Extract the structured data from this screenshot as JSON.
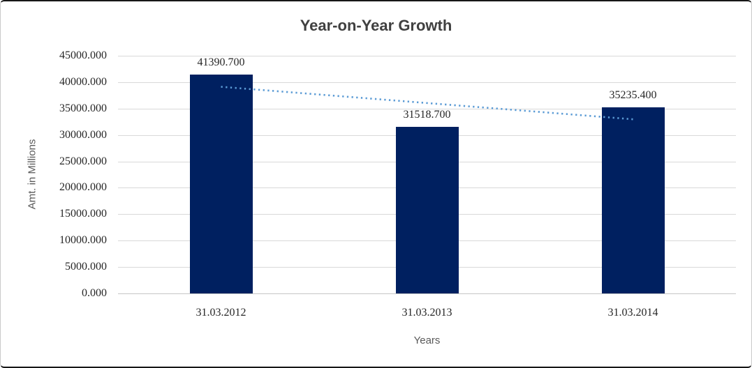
{
  "chart_data": {
    "type": "bar",
    "title": "Year-on-Year Growth",
    "categories": [
      "31.03.2012",
      "31.03.2013",
      "31.03.2014"
    ],
    "values": [
      41390.7,
      31518.7,
      35235.4
    ],
    "data_labels": [
      "41390.700",
      "31518.700",
      "35235.400"
    ],
    "xlabel": "Years",
    "ylabel": "Amt. in Millions",
    "ylim": [
      0,
      45000
    ],
    "y_tick_step": 5000,
    "y_tick_labels": [
      "45000.000",
      "40000.000",
      "35000.000",
      "30000.000",
      "25000.000",
      "20000.000",
      "15000.000",
      "10000.000",
      "5000.000",
      "0.000"
    ],
    "grid": true,
    "legend": "none",
    "trendline": {
      "type": "linear",
      "style": "dotted",
      "fit_values": [
        39126,
        36048,
        32971
      ]
    },
    "colors": {
      "bar": "#002060",
      "trendline": "#5B9BD5",
      "gridline": "#D9D9D9",
      "axis_line": "#C6C6C6",
      "title_text": "#404040",
      "axis_title_text": "#595959",
      "tick_text": "#262626"
    }
  }
}
